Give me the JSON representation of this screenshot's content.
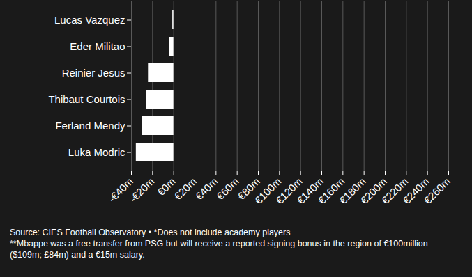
{
  "chart_data": {
    "type": "bar",
    "orientation": "horizontal",
    "categories": [
      "Lucas Vazquez",
      "Eder Militao",
      "Reinier Jesus",
      "Thibaut Courtois",
      "Ferland Mendy",
      "Luka Modric"
    ],
    "values": [
      -1,
      -4,
      -24,
      -26,
      -30,
      -35.5
    ],
    "color": "#ffffff",
    "xlim": [
      -40,
      260
    ],
    "xticks": [
      {
        "value": -40,
        "label": "-€40m"
      },
      {
        "value": -20,
        "label": "-€20m"
      },
      {
        "value": 0,
        "label": "€0m"
      },
      {
        "value": 20,
        "label": "€20m"
      },
      {
        "value": 40,
        "label": "€40m"
      },
      {
        "value": 60,
        "label": "€60m"
      },
      {
        "value": 80,
        "label": "€80m"
      },
      {
        "value": 100,
        "label": "€100m"
      },
      {
        "value": 120,
        "label": "€120m"
      },
      {
        "value": 140,
        "label": "€140m"
      },
      {
        "value": 160,
        "label": "€160m"
      },
      {
        "value": 180,
        "label": "€180m"
      },
      {
        "value": 200,
        "label": "€200m"
      },
      {
        "value": 220,
        "label": "€220m"
      },
      {
        "value": 240,
        "label": "€240m"
      },
      {
        "value": 260,
        "label": "€260m"
      }
    ],
    "grid": true,
    "caption": [
      "Source: CIES Football Observatory • *Does not include academy players",
      "**Mbappe was a free transfer from PSG but will receive a reported signing bonus in the region of €100million ($109m; £84m) and a €15m salary."
    ]
  }
}
